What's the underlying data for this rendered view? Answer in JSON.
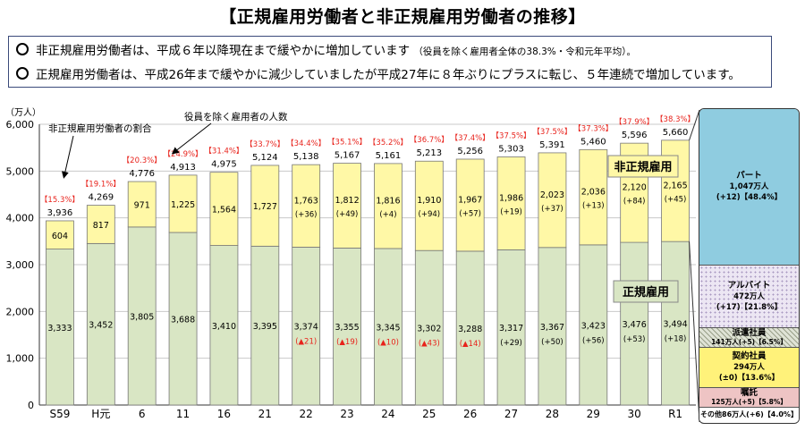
{
  "title": "【正規雇用労働者と非正規雇用労働者の推移】",
  "notes": [
    {
      "main": "非正規雇用労働者は、平成６年以降現在まで緩やかに増加しています",
      "small": "（役員を除く雇用者全体の38.3%・令和元年平均）。"
    },
    {
      "main": "正規雇用労働者は、平成26年まで緩やかに減少していましたが平成27年に８年ぶりにプラスに転じ、５年連続で増加しています。",
      "small": ""
    }
  ],
  "chart_data": {
    "type": "bar",
    "stacked": true,
    "yunit": "（万人）",
    "ylim": [
      0,
      6000
    ],
    "yticks": [
      "0",
      "1,000",
      "2,000",
      "3,000",
      "4,000",
      "5,000",
      "6,000"
    ],
    "grid": true,
    "categories": [
      "S59",
      "H元",
      "6",
      "11",
      "16",
      "21",
      "22",
      "23",
      "24",
      "25",
      "26",
      "27",
      "28",
      "29",
      "30",
      "R1"
    ],
    "series": [
      {
        "name": "正規雇用",
        "values": [
          3333,
          3452,
          3805,
          3688,
          3410,
          3395,
          3374,
          3355,
          3345,
          3302,
          3288,
          3317,
          3367,
          3423,
          3476,
          3494
        ],
        "color": "#d9e6c4"
      },
      {
        "name": "非正規雇用",
        "values": [
          604,
          817,
          971,
          1225,
          1564,
          1727,
          1763,
          1812,
          1816,
          1910,
          1967,
          1986,
          2023,
          2036,
          2120,
          2165
        ],
        "color": "#fff8a6"
      }
    ],
    "regular_labels": [
      "3,333",
      "3,452",
      "3,805",
      "3,688",
      "3,410",
      "3,395",
      "3,374",
      "3,355",
      "3,345",
      "3,302",
      "3,288",
      "3,317",
      "3,367",
      "3,423",
      "3,476",
      "3,494"
    ],
    "regular_changes": [
      "",
      "",
      "",
      "",
      "",
      "",
      "(▲21)",
      "(▲19)",
      "(▲10)",
      "(▲43)",
      "(▲14)",
      "(+29)",
      "(+50)",
      "(+56)",
      "(+53)",
      "(+18)"
    ],
    "nonregular_labels": [
      "604",
      "817",
      "971",
      "1,225",
      "1,564",
      "1,727",
      "1,763",
      "1,812",
      "1,816",
      "1,910",
      "1,967",
      "1,986",
      "2,023",
      "2,036",
      "2,120",
      "2,165"
    ],
    "nonregular_changes": [
      "",
      "",
      "",
      "",
      "",
      "",
      "(+36)",
      "(+49)",
      "(+4)",
      "(+94)",
      "(+57)",
      "(+19)",
      "(+37)",
      "(+13)",
      "(+84)",
      "(+45)"
    ],
    "totals": [
      3936,
      4269,
      4776,
      4913,
      4975,
      5124,
      5138,
      5167,
      5161,
      5213,
      5256,
      5303,
      5391,
      5460,
      5596,
      5660
    ],
    "total_labels": [
      "3,936",
      "4,269",
      "4,776",
      "4,913",
      "4,975",
      "5,124",
      "5,138",
      "5,167",
      "5,161",
      "5,213",
      "5,256",
      "5,303",
      "5,391",
      "5,460",
      "5,596",
      "5,660"
    ],
    "ratios": [
      "【15.3%】",
      "【19.1%】",
      "【20.3%】",
      "【24.9%】",
      "【31.4%】",
      "【33.7%】",
      "【34.4%】",
      "【35.1%】",
      "【35.2%】",
      "【36.7%】",
      "【37.4%】",
      "【37.5%】",
      "【37.5%】",
      "【37.3%】",
      "【37.9%】",
      "【38.3%】"
    ],
    "annotations": {
      "ratio_note": "非正規雇用労働者の割合",
      "total_note": "役員を除く雇用者の人数"
    },
    "legend_nonregular": "非正規雇用",
    "legend_regular": "正規雇用",
    "accent_red": "#e8221b"
  },
  "breakdown": [
    {
      "name": "パート",
      "lines": [
        "1,047万人",
        "(+12)【48.4%】"
      ],
      "value": 1047,
      "color": "#8fcce0",
      "pattern": "none"
    },
    {
      "name": "アルバイト",
      "lines": [
        "472万人",
        "(+17)【21.8%】"
      ],
      "value": 472,
      "color": "#ece6f3",
      "pattern": "dots"
    },
    {
      "name": "派遣社員",
      "lines": [
        "141万人(+5)【6.5%】"
      ],
      "value": 141,
      "color": "#dfe3d6",
      "pattern": "hatch"
    },
    {
      "name": "契約社員",
      "lines": [
        "294万人",
        "(±0)【13.6%】"
      ],
      "value": 294,
      "color": "#fff27a",
      "pattern": "none"
    },
    {
      "name": "嘱託",
      "lines": [
        "125万人(+5)【5.8%】"
      ],
      "value": 125,
      "color": "#eec4c4",
      "pattern": "none"
    },
    {
      "name": "その他86万人(+6)【4.0%】",
      "lines": [],
      "value": 86,
      "color": "#ffffff",
      "pattern": "none"
    }
  ]
}
